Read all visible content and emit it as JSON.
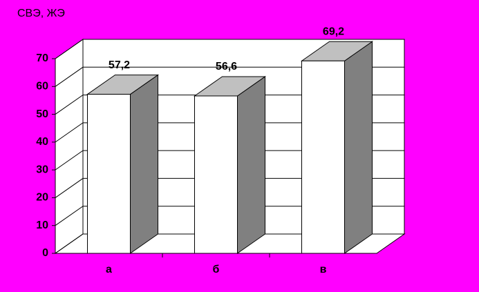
{
  "chart_data": {
    "type": "bar3d",
    "title": "СВЭ, ЖЭ",
    "categories": [
      "а",
      "б",
      "в"
    ],
    "values": [
      57.2,
      56.6,
      69.2
    ],
    "value_labels": [
      "57,2",
      "56,6",
      "69,2"
    ],
    "ylim": [
      0,
      70
    ],
    "yticks": [
      0,
      10,
      20,
      30,
      40,
      50,
      60,
      70
    ],
    "grid": true,
    "color": "#ffffff"
  }
}
